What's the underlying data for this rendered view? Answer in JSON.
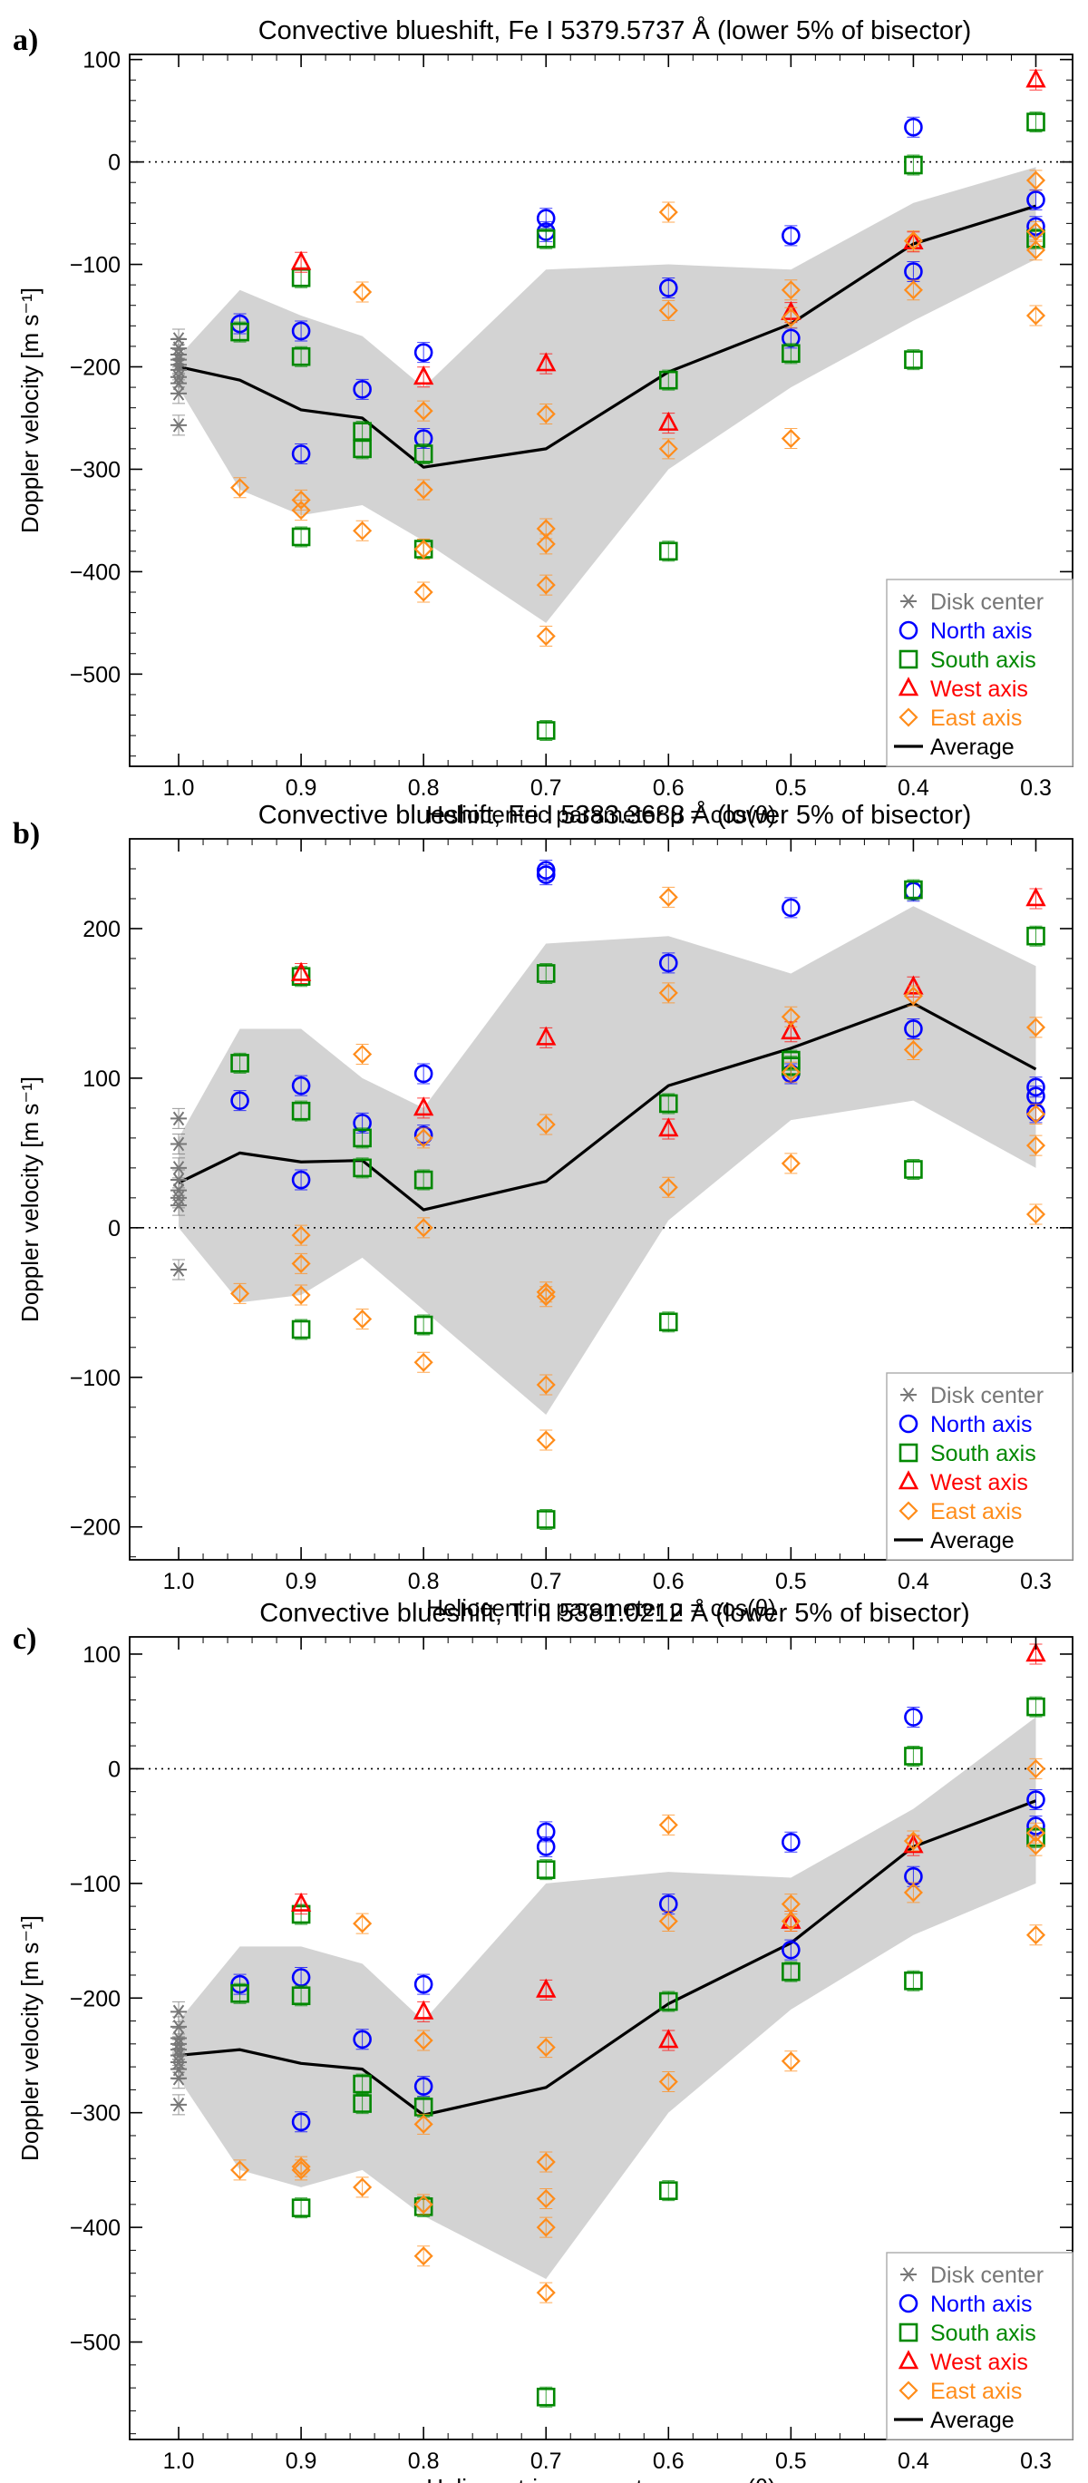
{
  "figure": {
    "panel_labels": [
      "a)",
      "b)",
      "c)"
    ]
  },
  "legend_labels": [
    "Disk center",
    "North axis",
    "South axis",
    "West axis",
    "East axis",
    "Average"
  ],
  "colors": {
    "disk": "#777777",
    "north": "#0000ff",
    "south": "#008800",
    "west": "#ff0000",
    "east": "#ff8c1a",
    "band": "#d3d3d3",
    "average": "#000000"
  },
  "chart_data": [
    {
      "type": "scatter",
      "panel": "a)",
      "title": "Convective blueshift, Fe I 5379.5737 Å (lower 5% of bisector)",
      "xlabel": "Heliocentric parameter μ = cos(θ)",
      "ylabel": "Doppler velocity [m s⁻¹]",
      "xlim": [
        1.04,
        0.27
      ],
      "ylim": [
        -590,
        105
      ],
      "xticks": [
        1.0,
        0.9,
        0.8,
        0.7,
        0.6,
        0.5,
        0.4,
        0.3
      ],
      "xtick_labels": [
        "1.0",
        "0.9",
        "0.8",
        "0.7",
        "0.6",
        "0.5",
        "0.4",
        "0.3"
      ],
      "yticks": [
        100,
        0,
        -100,
        -200,
        -300,
        -400,
        -500
      ],
      "ytick_labels": [
        "100",
        "0",
        "−100",
        "−200",
        "−300",
        "−400",
        "−500"
      ],
      "zero_line": 0,
      "band": {
        "x": [
          1.0,
          0.95,
          0.9,
          0.85,
          0.8,
          0.7,
          0.6,
          0.5,
          0.4,
          0.3
        ],
        "upper": [
          -190,
          -125,
          -150,
          -170,
          -220,
          -105,
          -100,
          -105,
          -40,
          -5
        ],
        "lower": [
          -220,
          -320,
          -345,
          -335,
          -370,
          -450,
          -300,
          -220,
          -155,
          -95
        ]
      },
      "average": {
        "x": [
          1.0,
          0.95,
          0.9,
          0.85,
          0.8,
          0.7,
          0.6,
          0.5,
          0.4,
          0.3
        ],
        "y": [
          -200,
          -213,
          -242,
          -250,
          -298,
          -280,
          -205,
          -158,
          -80,
          -43
        ]
      },
      "series": [
        {
          "name": "Disk center",
          "marker": "asterisk",
          "x": [
            1.0,
            1.0,
            1.0,
            1.0,
            1.0,
            1.0,
            1.0,
            1.0,
            1.0,
            1.0
          ],
          "y": [
            -173,
            -182,
            -188,
            -193,
            -198,
            -203,
            -210,
            -216,
            -226,
            -257
          ]
        },
        {
          "name": "North axis",
          "marker": "circle",
          "x": [
            0.95,
            0.9,
            0.9,
            0.85,
            0.8,
            0.8,
            0.7,
            0.7,
            0.6,
            0.5,
            0.5,
            0.4,
            0.4,
            0.3,
            0.3
          ],
          "y": [
            -158,
            -165,
            -285,
            -222,
            -186,
            -270,
            -55,
            -68,
            -123,
            -72,
            -172,
            34,
            -107,
            -37,
            -63
          ]
        },
        {
          "name": "South axis",
          "marker": "square",
          "x": [
            0.95,
            0.9,
            0.9,
            0.9,
            0.85,
            0.85,
            0.8,
            0.8,
            0.7,
            0.7,
            0.6,
            0.6,
            0.5,
            0.4,
            0.4,
            0.3,
            0.3
          ],
          "y": [
            -166,
            -113,
            -190,
            -366,
            -263,
            -280,
            -285,
            -378,
            -75,
            -555,
            -213,
            -380,
            -187,
            -3,
            -193,
            39,
            -75
          ]
        },
        {
          "name": "West axis",
          "marker": "triangle",
          "x": [
            0.9,
            0.8,
            0.7,
            0.6,
            0.5,
            0.4,
            0.3
          ],
          "y": [
            -98,
            -210,
            -197,
            -255,
            -147,
            -78,
            80
          ]
        },
        {
          "name": "East axis",
          "marker": "diamond",
          "x": [
            0.95,
            0.9,
            0.9,
            0.85,
            0.85,
            0.8,
            0.8,
            0.8,
            0.8,
            0.8,
            0.7,
            0.7,
            0.7,
            0.7,
            0.7,
            0.6,
            0.6,
            0.6,
            0.5,
            0.5,
            0.5,
            0.4,
            0.4,
            0.3,
            0.3,
            0.3,
            0.3
          ],
          "y": [
            -318,
            -330,
            -340,
            -127,
            -360,
            -243,
            -320,
            -378,
            -420,
            -378,
            -246,
            -358,
            -373,
            -413,
            -463,
            -49,
            -145,
            -280,
            -125,
            -152,
            -270,
            -77,
            -125,
            -18,
            -68,
            -86,
            -150
          ]
        }
      ]
    },
    {
      "type": "scatter",
      "panel": "b)",
      "title": "Convective blueshift, Fe I 5383.3688 Å (lower 5% of bisector)",
      "xlabel": "Heliocentric parameter μ = cos(θ)",
      "ylabel": "Doppler velocity [m s⁻¹]",
      "xlim": [
        1.04,
        0.27
      ],
      "ylim": [
        -222,
        260
      ],
      "xticks": [
        1.0,
        0.9,
        0.8,
        0.7,
        0.6,
        0.5,
        0.4,
        0.3
      ],
      "xtick_labels": [
        "1.0",
        "0.9",
        "0.8",
        "0.7",
        "0.6",
        "0.5",
        "0.4",
        "0.3"
      ],
      "yticks": [
        200,
        100,
        0,
        -100,
        -200
      ],
      "ytick_labels": [
        "200",
        "100",
        "0",
        "−100",
        "−200"
      ],
      "zero_line": 0,
      "band": {
        "x": [
          1.0,
          0.95,
          0.9,
          0.85,
          0.8,
          0.7,
          0.6,
          0.5,
          0.4,
          0.3
        ],
        "upper": [
          60,
          133,
          133,
          100,
          80,
          190,
          195,
          170,
          215,
          175
        ],
        "lower": [
          0,
          -50,
          -45,
          -20,
          -55,
          -125,
          5,
          72,
          85,
          40
        ]
      },
      "average": {
        "x": [
          1.0,
          0.95,
          0.9,
          0.85,
          0.8,
          0.7,
          0.6,
          0.5,
          0.4,
          0.3
        ],
        "y": [
          30,
          50,
          44,
          45,
          12,
          31,
          95,
          120,
          150,
          106
        ]
      },
      "series": [
        {
          "name": "Disk center",
          "marker": "asterisk",
          "x": [
            1.0,
            1.0,
            1.0,
            1.0,
            1.0,
            1.0,
            1.0,
            1.0
          ],
          "y": [
            73,
            56,
            40,
            32,
            25,
            20,
            15,
            -28
          ]
        },
        {
          "name": "North axis",
          "marker": "circle",
          "x": [
            0.95,
            0.9,
            0.9,
            0.85,
            0.8,
            0.8,
            0.7,
            0.7,
            0.6,
            0.5,
            0.5,
            0.4,
            0.4,
            0.3,
            0.3,
            0.3
          ],
          "y": [
            85,
            95,
            32,
            70,
            103,
            62,
            239,
            236,
            177,
            214,
            103,
            133,
            225,
            94,
            88,
            77
          ]
        },
        {
          "name": "South axis",
          "marker": "square",
          "x": [
            0.95,
            0.9,
            0.9,
            0.9,
            0.85,
            0.85,
            0.8,
            0.8,
            0.7,
            0.7,
            0.6,
            0.6,
            0.5,
            0.5,
            0.4,
            0.4,
            0.3
          ],
          "y": [
            110,
            168,
            78,
            -68,
            60,
            40,
            32,
            -65,
            170,
            -195,
            83,
            -63,
            112,
            108,
            226,
            39,
            195
          ]
        },
        {
          "name": "West axis",
          "marker": "triangle",
          "x": [
            0.9,
            0.8,
            0.7,
            0.6,
            0.5,
            0.4,
            0.3
          ],
          "y": [
            170,
            80,
            127,
            66,
            131,
            161,
            220
          ]
        },
        {
          "name": "East axis",
          "marker": "diamond",
          "x": [
            0.95,
            0.9,
            0.9,
            0.9,
            0.85,
            0.85,
            0.8,
            0.8,
            0.8,
            0.7,
            0.7,
            0.7,
            0.7,
            0.7,
            0.6,
            0.6,
            0.6,
            0.5,
            0.5,
            0.5,
            0.4,
            0.4,
            0.3,
            0.3,
            0.3,
            0.3
          ],
          "y": [
            -44,
            -5,
            -24,
            -45,
            116,
            -61,
            60,
            0,
            -90,
            69,
            -43,
            -46,
            -105,
            -142,
            221,
            157,
            27,
            141,
            104,
            43,
            119,
            155,
            134,
            76,
            55,
            9
          ]
        }
      ]
    },
    {
      "type": "scatter",
      "panel": "c)",
      "title": "Convective blueshift, Ti II 5381.0212 Å (lower 5% of bisector)",
      "xlabel": "Heliocentric parameter μ = cos(θ)",
      "ylabel": "Doppler velocity [m s⁻¹]",
      "xlim": [
        1.04,
        0.27
      ],
      "ylim": [
        -585,
        115
      ],
      "xticks": [
        1.0,
        0.9,
        0.8,
        0.7,
        0.6,
        0.5,
        0.4,
        0.3
      ],
      "xtick_labels": [
        "1.0",
        "0.9",
        "0.8",
        "0.7",
        "0.6",
        "0.5",
        "0.4",
        "0.3"
      ],
      "yticks": [
        100,
        0,
        -100,
        -200,
        -300,
        -400,
        -500
      ],
      "ytick_labels": [
        "100",
        "0",
        "−100",
        "−200",
        "−300",
        "−400",
        "−500"
      ],
      "zero_line": 0,
      "band": {
        "x": [
          1.0,
          0.95,
          0.9,
          0.85,
          0.8,
          0.7,
          0.6,
          0.5,
          0.4,
          0.3
        ],
        "upper": [
          -220,
          -155,
          -155,
          -170,
          -220,
          -100,
          -90,
          -95,
          -35,
          45
        ],
        "lower": [
          -270,
          -350,
          -365,
          -350,
          -390,
          -445,
          -300,
          -210,
          -145,
          -100
        ]
      },
      "average": {
        "x": [
          1.0,
          0.95,
          0.9,
          0.85,
          0.8,
          0.7,
          0.6,
          0.5,
          0.4,
          0.3
        ],
        "y": [
          -250,
          -245,
          -257,
          -262,
          -302,
          -278,
          -205,
          -152,
          -68,
          -28
        ]
      },
      "series": [
        {
          "name": "Disk center",
          "marker": "asterisk",
          "x": [
            1.0,
            1.0,
            1.0,
            1.0,
            1.0,
            1.0,
            1.0,
            1.0,
            1.0,
            1.0
          ],
          "y": [
            -212,
            -225,
            -235,
            -240,
            -245,
            -250,
            -256,
            -262,
            -270,
            -293
          ]
        },
        {
          "name": "North axis",
          "marker": "circle",
          "x": [
            0.95,
            0.9,
            0.9,
            0.85,
            0.8,
            0.8,
            0.7,
            0.7,
            0.6,
            0.5,
            0.5,
            0.4,
            0.4,
            0.3,
            0.3
          ],
          "y": [
            -188,
            -182,
            -308,
            -236,
            -188,
            -277,
            -55,
            -68,
            -118,
            -64,
            -158,
            45,
            -94,
            -27,
            -50
          ]
        },
        {
          "name": "South axis",
          "marker": "square",
          "x": [
            0.95,
            0.9,
            0.9,
            0.9,
            0.85,
            0.85,
            0.8,
            0.8,
            0.7,
            0.7,
            0.6,
            0.6,
            0.5,
            0.4,
            0.4,
            0.3,
            0.3
          ],
          "y": [
            -196,
            -127,
            -198,
            -383,
            -275,
            -292,
            -295,
            -382,
            -88,
            -548,
            -203,
            -368,
            -177,
            11,
            -185,
            54,
            -60
          ]
        },
        {
          "name": "West axis",
          "marker": "triangle",
          "x": [
            0.9,
            0.8,
            0.7,
            0.6,
            0.5,
            0.4,
            0.3
          ],
          "y": [
            -118,
            -212,
            -193,
            -237,
            -133,
            -67,
            100
          ]
        },
        {
          "name": "East axis",
          "marker": "diamond",
          "x": [
            0.95,
            0.9,
            0.9,
            0.85,
            0.85,
            0.8,
            0.8,
            0.8,
            0.8,
            0.7,
            0.7,
            0.7,
            0.7,
            0.7,
            0.6,
            0.6,
            0.6,
            0.5,
            0.5,
            0.5,
            0.4,
            0.4,
            0.3,
            0.3,
            0.3,
            0.3
          ],
          "y": [
            -350,
            -347,
            -350,
            -135,
            -365,
            -237,
            -310,
            -380,
            -425,
            -243,
            -343,
            -375,
            -400,
            -457,
            -49,
            -133,
            -273,
            -118,
            -133,
            -255,
            -63,
            -108,
            0,
            -56,
            -67,
            -145
          ]
        }
      ]
    }
  ]
}
